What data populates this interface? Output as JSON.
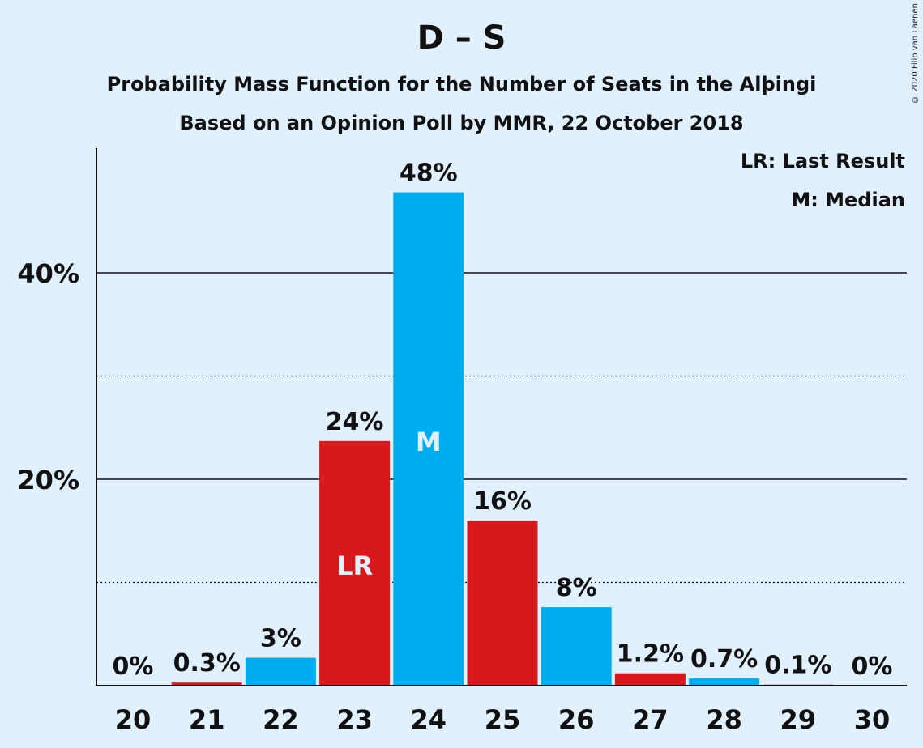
{
  "header": {
    "title": "D – S",
    "subtitle1": "Probability Mass Function for the Number of Seats in the Alþingi",
    "subtitle2": "Based on an Opinion Poll by MMR, 22 October 2018",
    "copyright": "© 2020 Filip van Laenen"
  },
  "legend": {
    "lr": "LR: Last Result",
    "m": "M: Median"
  },
  "colors": {
    "background": "#e0f0ff",
    "blue": "#00aeef",
    "red": "#d7191c"
  },
  "chart_data": {
    "type": "bar",
    "categories": [
      "20",
      "21",
      "22",
      "23",
      "24",
      "25",
      "26",
      "27",
      "28",
      "29",
      "30"
    ],
    "values": [
      0,
      0.3,
      2.7,
      23.7,
      47.8,
      16.0,
      7.6,
      1.2,
      0.7,
      0.1,
      0
    ],
    "labels": [
      "0%",
      "0.3%",
      "3%",
      "24%",
      "48%",
      "16%",
      "8%",
      "1.2%",
      "0.7%",
      "0.1%",
      "0%"
    ],
    "bar_colors": [
      "blue",
      "red",
      "blue",
      "red",
      "blue",
      "red",
      "blue",
      "red",
      "blue",
      "red",
      "blue"
    ],
    "markers": {
      "23": "LR",
      "24": "M"
    },
    "ylim": [
      0,
      52
    ],
    "y_major_ticks": [
      20,
      40
    ],
    "y_tick_labels": [
      "20%",
      "40%"
    ],
    "y_minor_ticks": [
      10,
      30
    ]
  }
}
